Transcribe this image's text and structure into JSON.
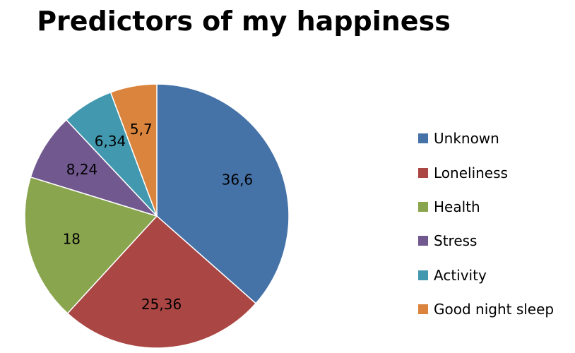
{
  "chart_data": {
    "type": "pie",
    "title": "Predictors of my happiness",
    "categories": [
      "Unknown",
      "Loneliness",
      "Health",
      "Stress",
      "Activity",
      "Good night sleep"
    ],
    "values": [
      36.6,
      25.36,
      18,
      8.24,
      6.34,
      5.7
    ],
    "value_labels": [
      "36,6",
      "25,36",
      "18",
      "8,24",
      "6,34",
      "5,7"
    ],
    "colors": [
      "#4572A7",
      "#AA4643",
      "#89A54E",
      "#71588F",
      "#4198AF",
      "#DB843D"
    ],
    "start_angle": "12 o'clock",
    "direction": "clockwise",
    "legend_position": "right"
  }
}
